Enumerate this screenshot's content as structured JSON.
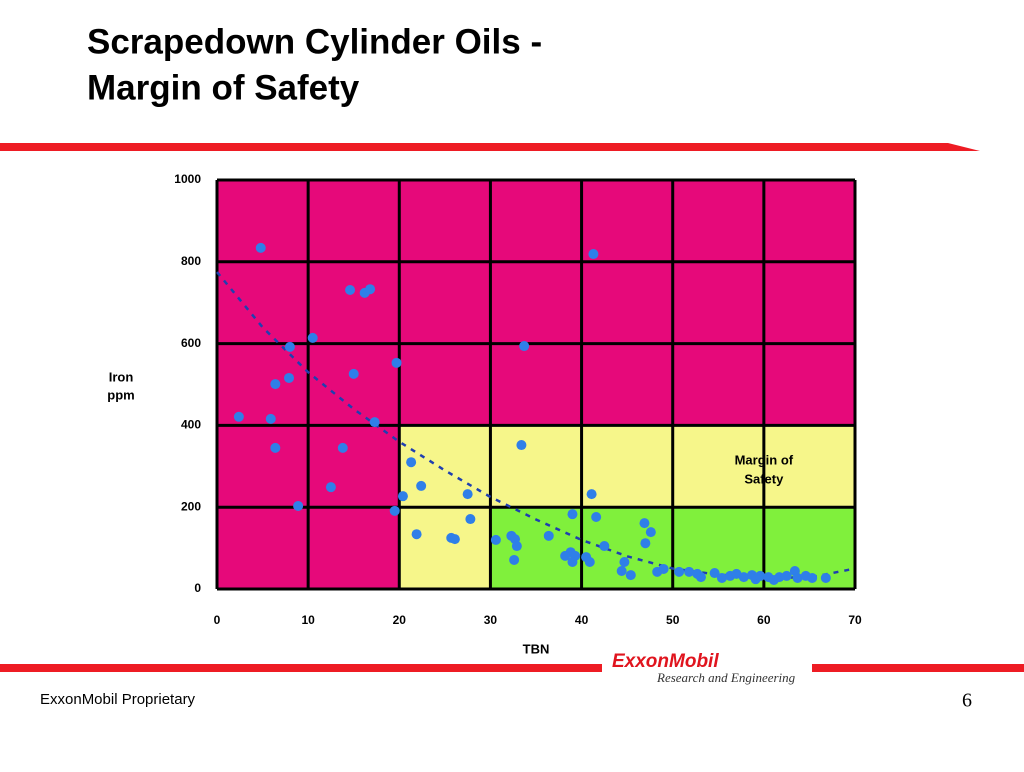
{
  "chart_data": {
    "type": "scatter",
    "title": [
      "Scrapedown Cylinder Oils -",
      "Margin of Safety"
    ],
    "xlabel": "TBN",
    "ylabel": [
      "Iron",
      "ppm"
    ],
    "xlim": [
      0,
      70
    ],
    "ylim": [
      0,
      1000
    ],
    "xticks": [
      0,
      10,
      20,
      30,
      40,
      50,
      60,
      70
    ],
    "yticks": [
      0,
      200,
      400,
      600,
      800,
      1000
    ],
    "grid": true,
    "plot_color": "#e6097a",
    "zones": [
      {
        "color": "#f6f68a",
        "xlim": [
          20,
          70
        ],
        "ylim": [
          0,
          400
        ]
      },
      {
        "color": "#80f03c",
        "xlim": [
          30,
          70
        ],
        "ylim": [
          0,
          200
        ]
      }
    ],
    "annotation": {
      "text": [
        "Margin of",
        "Safety"
      ],
      "x": 60,
      "y": 290
    },
    "series": [
      {
        "color": "#2f7fe8",
        "x": [
          4.8,
          41.3,
          14.6,
          16.2,
          16.8,
          8.0,
          10.5,
          33.7,
          6.4,
          7.9,
          15.0,
          19.7,
          2.4,
          5.9,
          17.3,
          6.4,
          13.8,
          33.4,
          21.3,
          12.5,
          22.4,
          20.4,
          27.5,
          41.1,
          8.9,
          19.5,
          39.0,
          41.6,
          27.8,
          46.9,
          21.9,
          25.7,
          26.1,
          32.3,
          32.7,
          36.4,
          47.6,
          30.6,
          32.9,
          42.5,
          47.0,
          38.8,
          38.2,
          39.3,
          32.6,
          40.5,
          40.9,
          39.0,
          44.7,
          44.4,
          45.4,
          48.3,
          49.0,
          50.7,
          51.8,
          52.7,
          53.1,
          54.6,
          55.4,
          56.3,
          57.0,
          57.8,
          58.7,
          59.1,
          59.6,
          60.5,
          61.1,
          61.7,
          62.5,
          63.4,
          63.7,
          64.6,
          65.3,
          66.8
        ],
        "values": [
          834,
          819,
          731,
          724,
          733,
          592,
          614,
          594,
          501,
          516,
          526,
          553,
          421,
          416,
          408,
          345,
          345,
          352,
          310,
          249,
          252,
          227,
          232,
          232,
          203,
          191,
          183,
          176,
          171,
          161,
          134,
          125,
          122,
          130,
          122,
          130,
          139,
          120,
          105,
          105,
          112,
          90,
          81,
          81,
          71,
          78,
          66,
          66,
          66,
          44,
          34,
          42,
          49,
          42,
          42,
          37,
          29,
          39,
          27,
          32,
          37,
          29,
          34,
          24,
          32,
          29,
          22,
          29,
          32,
          44,
          27,
          32,
          27,
          27
        ]
      }
    ],
    "trend": {
      "color": "#1f3fb0",
      "x": [
        0,
        5,
        10,
        15,
        20,
        25,
        30,
        35,
        40,
        45,
        50,
        55,
        60,
        65,
        70
      ],
      "values": [
        775,
        640,
        530,
        440,
        360,
        290,
        225,
        170,
        120,
        80,
        50,
        35,
        28,
        28,
        50
      ]
    }
  },
  "logo": {
    "name": "ExxonMobil",
    "division": "Research and Engineering"
  },
  "footer": {
    "text": "ExxonMobil Proprietary",
    "page": 6
  }
}
